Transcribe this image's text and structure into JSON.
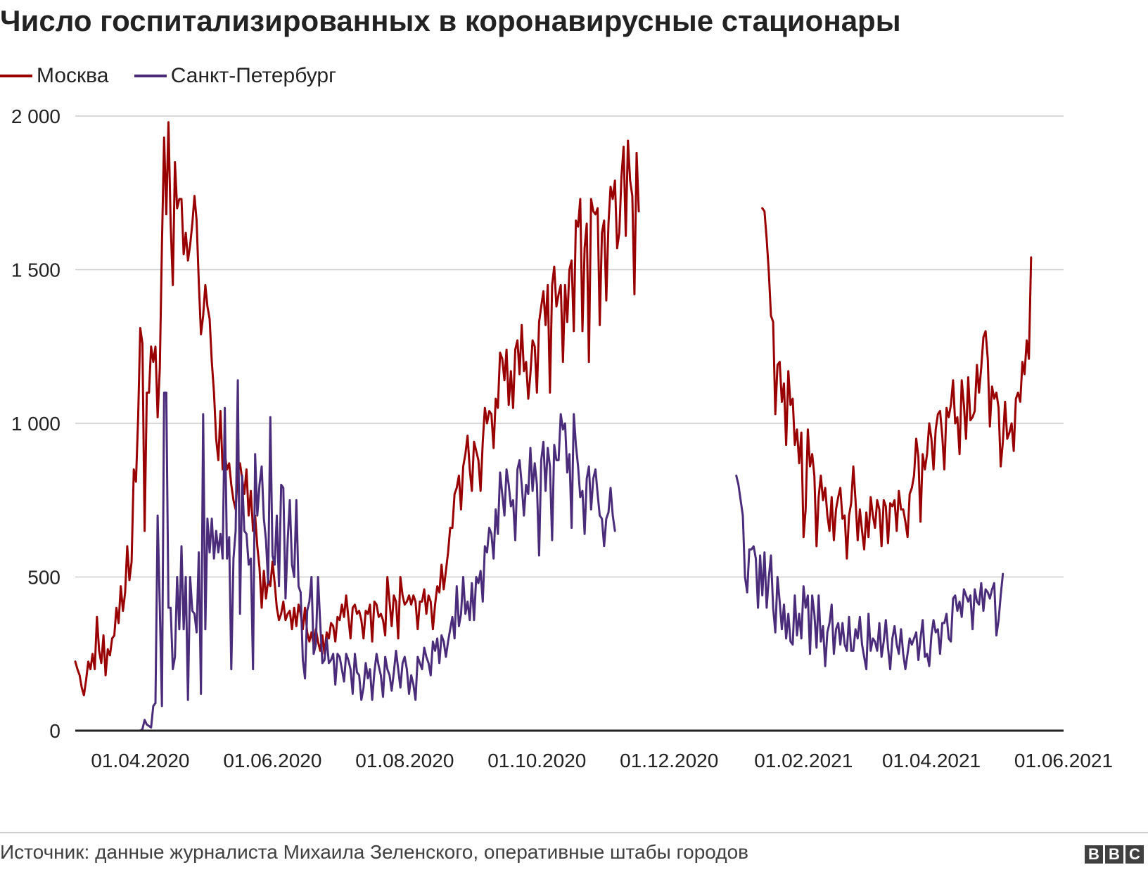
{
  "chart_data": {
    "type": "line",
    "title": "Число госпитализированных в коронавирусные стационары",
    "xlabel": "",
    "ylabel": "",
    "ylim": [
      0,
      2000
    ],
    "y_ticks": [
      0,
      500,
      1000,
      1500,
      2000
    ],
    "y_tick_labels": [
      "0",
      "500",
      "1 000",
      "1 500",
      "2 000"
    ],
    "x_range": [
      "2020-03-02",
      "2021-06-01"
    ],
    "x_ticks": [
      "2020-04-01",
      "2020-06-01",
      "2020-08-01",
      "2020-10-01",
      "2020-12-01",
      "2021-02-01",
      "2021-04-01",
      "2021-06-01"
    ],
    "x_tick_labels": [
      "01.04.2020",
      "01.06.2020",
      "01.08.2020",
      "01.10.2020",
      "01.12.2020",
      "01.02.2021",
      "01.04.2021",
      "01.06.2021"
    ],
    "grid": "horizontal",
    "legend_position": "top-left",
    "series": [
      {
        "name": "Москва",
        "color": "#990000",
        "segments": [
          {
            "start": "2020-03-02",
            "values": [
              225,
              200,
              180,
              140,
              115,
              165,
              225,
              200,
              250,
              200,
              370,
              260,
              220,
              310,
              180,
              265,
              245,
              300,
              310,
              400,
              350,
              470,
              390,
              450,
              600,
              490,
              550,
              850,
              810,
              1020,
              1310,
              1260,
              650,
              1100,
              1100,
              1250,
              1200,
              1250,
              1020,
              1180,
              1580,
              1930,
              1680,
              1980,
              1650,
              1450,
              1850,
              1700,
              1730,
              1730,
              1550,
              1620,
              1530,
              1580,
              1650,
              1740,
              1660,
              1460,
              1290,
              1350,
              1450,
              1380,
              1340,
              1200,
              1100,
              950,
              880,
              1040,
              850,
              900,
              850,
              870,
              800,
              750,
              720,
              840,
              870,
              820,
              770,
              850,
              700,
              780,
              650,
              700,
              600,
              530,
              400,
              520,
              430,
              490,
              470,
              550,
              480,
              400,
              360,
              380,
              420,
              360,
              380,
              390,
              330,
              400,
              340,
              410,
              380,
              330,
              400,
              320,
              290,
              320,
              280,
              330,
              290,
              260,
              310,
              250,
              320,
              300,
              350,
              340,
              290,
              370,
              360,
              410,
              370,
              440,
              370,
              300,
              400,
              410,
              380,
              390,
              360,
              300,
              390,
              380,
              410,
              290,
              420,
              410,
              370,
              380,
              360,
              310,
              500,
              420,
              340,
              440,
              420,
              300,
              500,
              440,
              410,
              420,
              440,
              410,
              440,
              420,
              330,
              420,
              420,
              460,
              380,
              440,
              420,
              330,
              410,
              470,
              450,
              540,
              460,
              520,
              580,
              660,
              660,
              770,
              790,
              830,
              720,
              860,
              900,
              960,
              850,
              780,
              940,
              910,
              880,
              780,
              940,
              1050,
              1000,
              1040,
              1030,
              920,
              1080,
              1050,
              1230,
              1210,
              1140,
              1240,
              1060,
              1170,
              1050,
              1240,
              1270,
              1160,
              1320,
              1170,
              1200,
              1080,
              1160,
              1270,
              1250,
              1100,
              1330,
              1380,
              1430,
              1320,
              1450,
              1100,
              1450,
              1510,
              1380,
              1420,
              1450,
              1200,
              1450,
              1330,
              1500,
              1530,
              1300,
              1660,
              1640,
              1730,
              1300,
              1570,
              1650,
              1200,
              1730,
              1690,
              1680,
              1700,
              1320,
              1620,
              1660,
              1400,
              1650,
              1770,
              1730,
              1790,
              1570,
              1620,
              1800,
              1900,
              1610,
              1920,
              1790,
              1740,
              1420,
              1880,
              1690
            ]
          },
          {
            "start": "2021-01-13",
            "values": [
              1700,
              1690,
              1600,
              1490,
              1350,
              1330,
              1030,
              1190,
              1200,
              1070,
              1130,
              930,
              1170,
              1060,
              1080,
              930,
              980,
              870,
              970,
              630,
              720,
              980,
              860,
              900,
              830,
              600,
              760,
              830,
              750,
              790,
              700,
              650,
              760,
              620,
              720,
              760,
              790,
              690,
              700,
              560,
              700,
              740,
              860,
              750,
              620,
              720,
              650,
              590,
              710,
              630,
              760,
              700,
              660,
              750,
              720,
              600,
              750,
              730,
              610,
              740,
              730,
              750,
              650,
              780,
              720,
              720,
              680,
              630,
              770,
              790,
              830,
              950,
              890,
              680,
              900,
              850,
              900,
              1000,
              950,
              850,
              980,
              1030,
              1040,
              960,
              850,
              1050,
              1020,
              1060,
              1140,
              1000,
              1020,
              900,
              1140,
              1060,
              950,
              1150,
              1010,
              1020,
              1040,
              1190,
              1100,
              1180,
              1280,
              1300,
              1210,
              990,
              1120,
              1080,
              1100,
              1050,
              860,
              940,
              1070,
              950,
              970,
              1000,
              910,
              1080,
              1100,
              1070,
              1200,
              1160,
              1270,
              1210,
              1540
            ]
          }
        ]
      },
      {
        "name": "Санкт-Петербург",
        "color": "#4b2c7a",
        "segments": [
          {
            "start": "2020-04-01",
            "values": [
              0,
              5,
              35,
              20,
              15,
              10,
              80,
              90,
              700,
              400,
              80,
              1100,
              1100,
              400,
              400,
              200,
              240,
              500,
              330,
              600,
              330,
              500,
              100,
              500,
              390,
              380,
              320,
              580,
              120,
              1030,
              330,
              690,
              580,
              690,
              560,
              650,
              580,
              640,
              560,
              1050,
              560,
              630,
              200,
              560,
              650,
              1140,
              380,
              830,
              650,
              640,
              540,
              560,
              200,
              900,
              700,
              800,
              860,
              690,
              620,
              480,
              1020,
              570,
              540,
              700,
              470,
              800,
              790,
              430,
              620,
              750,
              540,
              500,
              750,
              470,
              450,
              230,
              170,
              390,
              420,
              500,
              250,
              280,
              500,
              350,
              220,
              230,
              300,
              220,
              230,
              250,
              150,
              250,
              240,
              200,
              160,
              250,
              230,
              200,
              120,
              250,
              190,
              180,
              100,
              140,
              220,
              170,
              200,
              100,
              190,
              250,
              210,
              180,
              110,
              240,
              200,
              180,
              130,
              190,
              260,
              200,
              140,
              220,
              240,
              200,
              120,
              180,
              150,
              100,
              240,
              220,
              200,
              270,
              240,
              220,
              180,
              290,
              260,
              300,
              220,
              310,
              290,
              240,
              290,
              330,
              370,
              300,
              470,
              340,
              380,
              500,
              380,
              420,
              360,
              480,
              360,
              500,
              480,
              520,
              420,
              600,
              580,
              660,
              640,
              560,
              720,
              640,
              840,
              770,
              700,
              850,
              800,
              730,
              750,
              620,
              850,
              880,
              800,
              700,
              800,
              770,
              920,
              780,
              870,
              800,
              570,
              880,
              940,
              780,
              920,
              860,
              620,
              930,
              880,
              880,
              1030,
              980,
              1000,
              840,
              900,
              660,
              1030,
              930,
              860,
              760,
              780,
              640,
              820,
              860,
              720,
              820,
              850,
              770,
              700,
              690,
              600,
              690,
              710,
              790,
              700,
              650
            ]
          },
          {
            "start": "2021-01-01",
            "values": [
              830,
              800,
              750,
              700,
              500,
              450,
              590,
              590,
              600,
              560,
              400,
              570,
              440,
              580,
              400,
              500,
              570,
              400,
              320,
              500,
              420,
              330,
              410,
              300,
              380,
              290,
              280,
              440,
              310,
              380,
              300,
              470,
              400,
              440,
              250,
              440,
              380,
              270,
              440,
              290,
              340,
              210,
              320,
              350,
              410,
              250,
              330,
              350,
              280,
              350,
              280,
              260,
              370,
              260,
              260,
              330,
              300,
              370,
              280,
              240,
              200,
              380,
              260,
              300,
              290,
              260,
              350,
              240,
              290,
              360,
              270,
              200,
              300,
              340,
              280,
              250,
              330,
              250,
              200,
              250,
              300,
              280,
              300,
              320,
              230,
              300,
              360,
              240,
              250,
              210,
              310,
              360,
              320,
              330,
              250,
              350,
              350,
              380,
              300,
              290,
              430,
              440,
              390,
              420,
              370,
              460,
              440,
              420,
              440,
              330,
              460,
              420,
              410,
              480,
              390,
              460,
              450,
              430,
              460,
              480,
              310,
              360,
              440,
              510
            ]
          }
        ]
      }
    ]
  },
  "source_text": "Источник: данные журналиста Михаила Зеленского, оперативные штабы городов",
  "logo": [
    "B",
    "B",
    "C"
  ]
}
